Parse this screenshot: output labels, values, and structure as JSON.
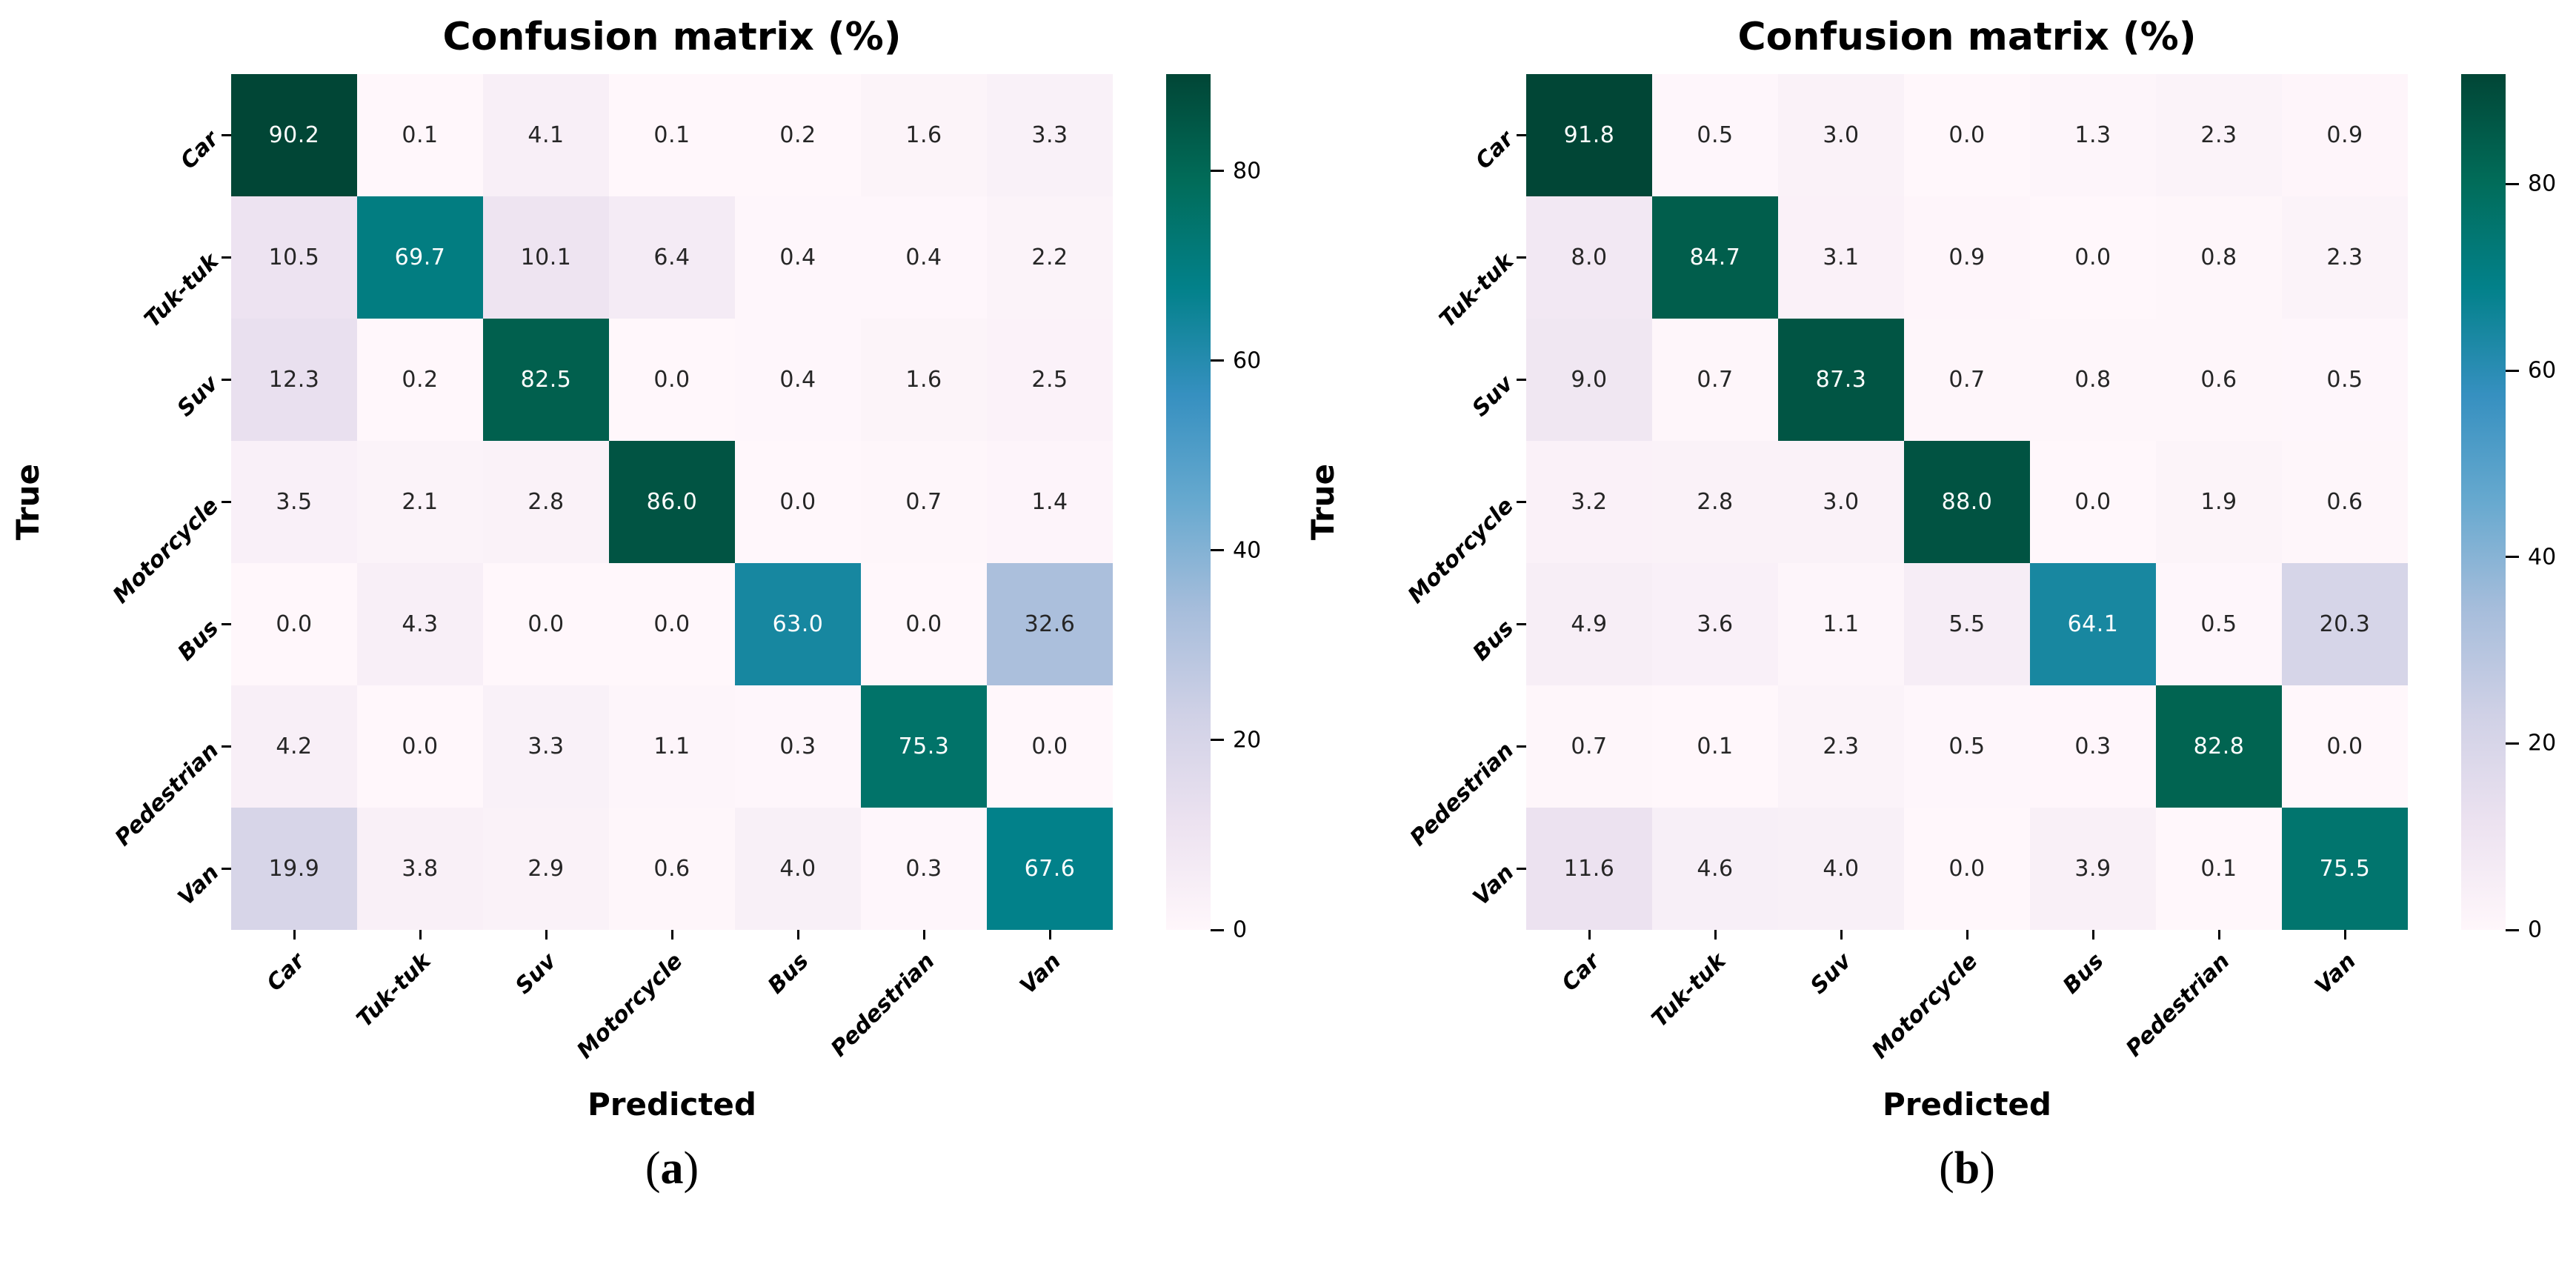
{
  "page": {
    "background": "#ffffff"
  },
  "colormap_stops": [
    "#fff7fb",
    "#ece2f0",
    "#d0d1e6",
    "#a6bddb",
    "#67a9cf",
    "#3690c0",
    "#02818a",
    "#016c59",
    "#014636"
  ],
  "text_colors": {
    "annotation_dark": "#262626",
    "annotation_light": "#ffffff",
    "tick": "#000000"
  },
  "chart_data": [
    {
      "type": "heatmap",
      "caption": "(a)",
      "title": "Confusion matrix (%)",
      "xlabel": "Predicted",
      "ylabel": "True",
      "x_categories": [
        "Car",
        "Tuk-tuk",
        "Suv",
        "Motorcycle",
        "Bus",
        "Pedestrian",
        "Van"
      ],
      "y_categories": [
        "Car",
        "Tuk-tuk",
        "Suv",
        "Motorcycle",
        "Bus",
        "Pedestrian",
        "Van"
      ],
      "values": [
        [
          90.2,
          0.1,
          4.1,
          0.1,
          0.2,
          1.6,
          3.3
        ],
        [
          10.5,
          69.7,
          10.1,
          6.4,
          0.4,
          0.4,
          2.2
        ],
        [
          12.3,
          0.2,
          82.5,
          0.0,
          0.4,
          1.6,
          2.5
        ],
        [
          3.5,
          2.1,
          2.8,
          86.0,
          0.0,
          0.7,
          1.4
        ],
        [
          0.0,
          4.3,
          0.0,
          0.0,
          63.0,
          0.0,
          32.6
        ],
        [
          4.2,
          0.0,
          3.3,
          1.1,
          0.3,
          75.3,
          0.0
        ],
        [
          19.9,
          3.8,
          2.9,
          0.6,
          4.0,
          0.3,
          67.6
        ]
      ],
      "vmin": 0,
      "vmax": 90.2,
      "colorbar_ticks": [
        0,
        20,
        40,
        60,
        80
      ],
      "colorbar_position": "right",
      "colormap": "PuBuGn",
      "tick_label_rotation": 45,
      "grid": false,
      "legend": null,
      "value_format": "1-decimal"
    },
    {
      "type": "heatmap",
      "caption": "(b)",
      "title": "Confusion matrix (%)",
      "xlabel": "Predicted",
      "ylabel": "True",
      "x_categories": [
        "Car",
        "Tuk-tuk",
        "Suv",
        "Motorcycle",
        "Bus",
        "Pedestrian",
        "Van"
      ],
      "y_categories": [
        "Car",
        "Tuk-tuk",
        "Suv",
        "Motorcycle",
        "Bus",
        "Pedestrian",
        "Van"
      ],
      "values": [
        [
          91.8,
          0.5,
          3.0,
          0.0,
          1.3,
          2.3,
          0.9
        ],
        [
          8.0,
          84.7,
          3.1,
          0.9,
          0.0,
          0.8,
          2.3
        ],
        [
          9.0,
          0.7,
          87.3,
          0.7,
          0.8,
          0.6,
          0.5
        ],
        [
          3.2,
          2.8,
          3.0,
          88.0,
          0.0,
          1.9,
          0.6
        ],
        [
          4.9,
          3.6,
          1.1,
          5.5,
          64.1,
          0.5,
          20.3
        ],
        [
          0.7,
          0.1,
          2.3,
          0.5,
          0.3,
          82.8,
          0.0
        ],
        [
          11.6,
          4.6,
          4.0,
          0.0,
          3.9,
          0.1,
          75.5
        ]
      ],
      "vmin": 0,
      "vmax": 91.8,
      "colorbar_ticks": [
        0,
        20,
        40,
        60,
        80
      ],
      "colorbar_position": "right",
      "colormap": "PuBuGn",
      "tick_label_rotation": 45,
      "grid": false,
      "legend": null,
      "value_format": "1-decimal"
    }
  ]
}
